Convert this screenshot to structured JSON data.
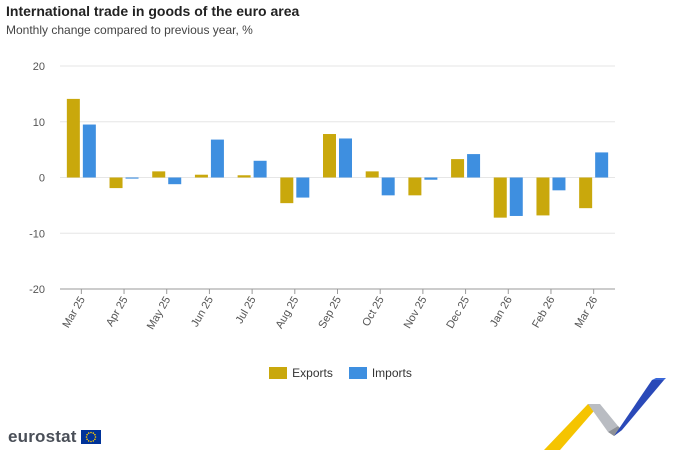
{
  "title": "International trade in goods of the euro area",
  "subtitle": "Monthly change compared to previous year, %",
  "colors": {
    "exports": "#c9a80c",
    "imports": "#3e8fe0",
    "grid": "#e6e6e6",
    "axis": "#999999"
  },
  "legend": {
    "exports_label": "Exports",
    "imports_label": "Imports"
  },
  "brand": {
    "name": "eurostat",
    "logo_icon": "eu-flag-icon"
  },
  "chart_data": {
    "type": "bar",
    "title": "International trade in goods of the euro area",
    "subtitle": "Monthly change compared to previous year, %",
    "categories": [
      "Mar 25",
      "Apr 25",
      "May 25",
      "Jun 25",
      "Jul 25",
      "Aug 25",
      "Sep 25",
      "Oct 25",
      "Nov 25",
      "Dec 25",
      "Jan 26",
      "Feb 26",
      "Mar 26"
    ],
    "series": [
      {
        "name": "Exports",
        "values": [
          14.1,
          -1.9,
          1.1,
          0.5,
          0.4,
          -4.6,
          7.8,
          1.1,
          -3.2,
          3.3,
          -7.2,
          -6.8,
          -5.5
        ]
      },
      {
        "name": "Imports",
        "values": [
          9.5,
          -0.2,
          -1.2,
          6.8,
          3.0,
          -3.6,
          7.0,
          -3.2,
          -0.4,
          4.2,
          -6.9,
          -2.3,
          4.5
        ]
      }
    ],
    "ylim": [
      -20,
      20
    ],
    "yticks": [
      20,
      10,
      0,
      -10,
      -20
    ],
    "grid": true,
    "legend_position": "bottom"
  }
}
